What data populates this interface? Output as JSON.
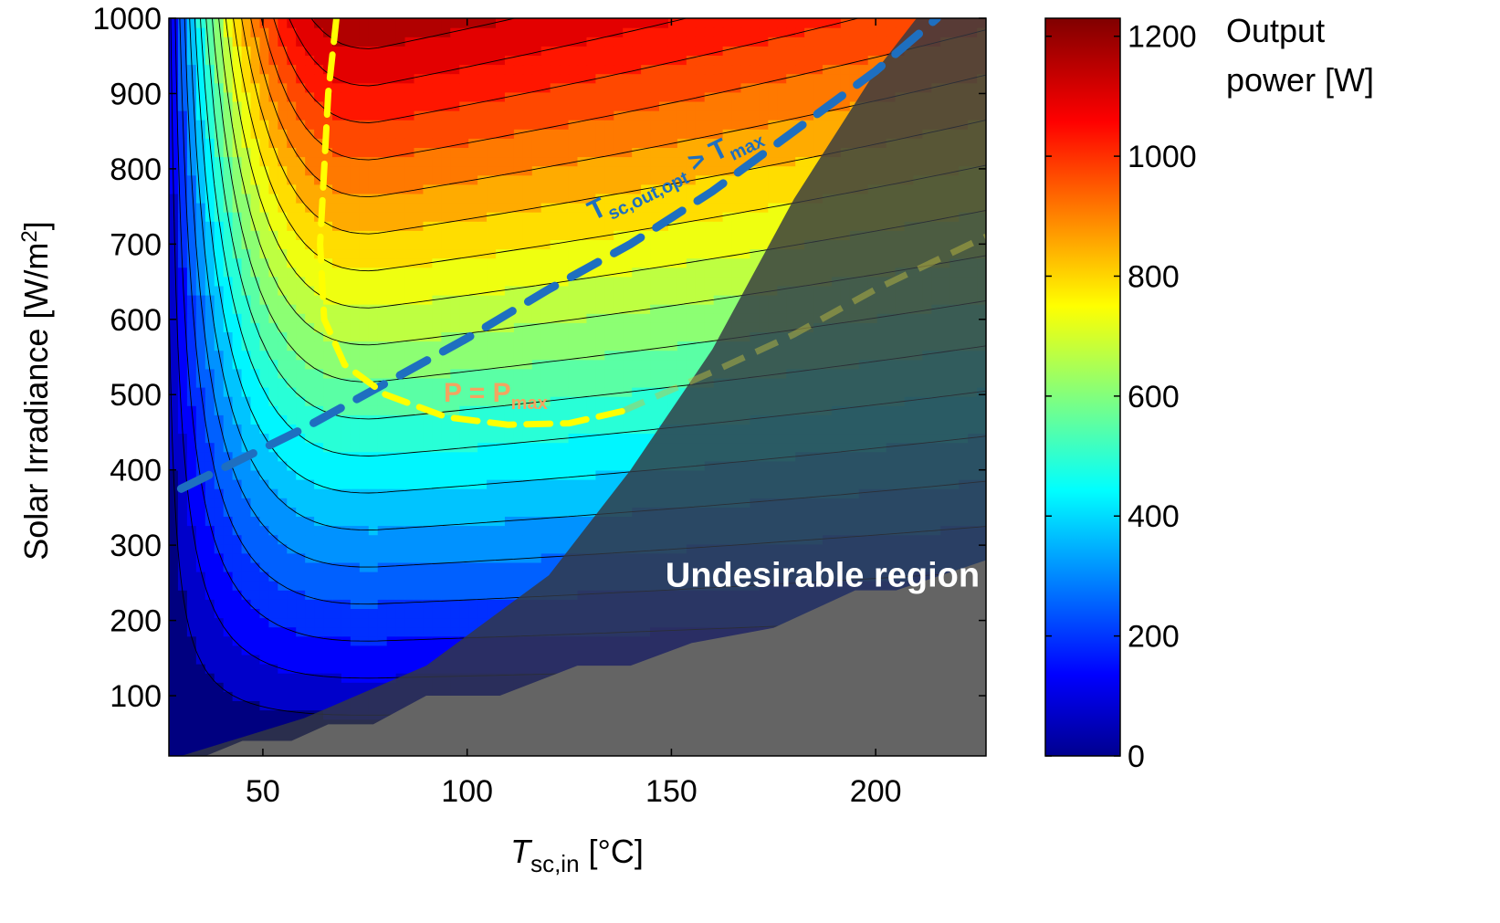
{
  "chart_data": {
    "type": "heatmap",
    "title": "",
    "xlabel": {
      "italic": "T",
      "sub": "sc,in",
      "unit": " [°C]"
    },
    "ylabel": {
      "text": "Solar Irradiance [W/m",
      "sup": "2",
      "close": "]"
    },
    "xlim": [
      27,
      227
    ],
    "ylim": [
      20,
      1000
    ],
    "xticks": [
      50,
      100,
      150,
      200
    ],
    "yticks": [
      100,
      200,
      300,
      400,
      500,
      600,
      700,
      800,
      900,
      1000
    ],
    "colorbar": {
      "label_line1": "Output",
      "label_line2": "power [W]",
      "range": [
        0,
        1230
      ],
      "ticks": [
        0,
        200,
        400,
        600,
        800,
        1000,
        1200
      ],
      "colormap": "jet"
    },
    "power_model": {
      "x_opt_at_high_irradiance": 77,
      "irradiance_min_for_optimum": 470
    },
    "contour_levels": [
      60,
      120,
      180,
      240,
      300,
      360,
      420,
      480,
      540,
      600,
      660,
      720,
      780,
      840,
      900,
      960,
      1020,
      1080,
      1140,
      1200
    ],
    "undesirable_boundary": [
      [
        30,
        20
      ],
      [
        60,
        70
      ],
      [
        90,
        140
      ],
      [
        120,
        260
      ],
      [
        140,
        400
      ],
      [
        160,
        560
      ],
      [
        180,
        760
      ],
      [
        200,
        930
      ],
      [
        210,
        1000
      ]
    ],
    "gray_region": [
      [
        36,
        20
      ],
      [
        45,
        40
      ],
      [
        57,
        40
      ],
      [
        66,
        62
      ],
      [
        77,
        62
      ],
      [
        90,
        100
      ],
      [
        108,
        100
      ],
      [
        127,
        140
      ],
      [
        140,
        140
      ],
      [
        155,
        170
      ],
      [
        175,
        190
      ],
      [
        195,
        240
      ],
      [
        205,
        240
      ],
      [
        227,
        280
      ]
    ],
    "series": [
      {
        "name": "P = P",
        "subscript": "max",
        "color": "#ffff00",
        "style": "dashed",
        "points": [
          [
            68,
            1000
          ],
          [
            66,
            900
          ],
          [
            65,
            800
          ],
          [
            64,
            700
          ],
          [
            65,
            600
          ],
          [
            70,
            540
          ],
          [
            80,
            500
          ],
          [
            95,
            470
          ],
          [
            110,
            460
          ],
          [
            125,
            462
          ],
          [
            138,
            478
          ]
        ]
      },
      {
        "name": "T",
        "subscript": "sc,out,opt",
        "suffix": " > T",
        "suffix_subscript": "max",
        "color": "#1e6fc0",
        "style": "dashed",
        "points": [
          [
            30,
            375
          ],
          [
            60,
            455
          ],
          [
            80,
            515
          ],
          [
            100,
            575
          ],
          [
            120,
            640
          ],
          [
            140,
            700
          ],
          [
            160,
            770
          ],
          [
            180,
            850
          ],
          [
            200,
            930
          ],
          [
            215,
            1000
          ]
        ]
      },
      {
        "name": "continuation",
        "color": "#c8c040",
        "style": "dashed-faded",
        "points": [
          [
            138,
            478
          ],
          [
            160,
            530
          ],
          [
            180,
            580
          ],
          [
            200,
            640
          ],
          [
            227,
            710
          ]
        ]
      }
    ],
    "annotations": [
      {
        "text": "Undesirable region",
        "at": [
          187,
          245
        ],
        "color": "#ffffff"
      }
    ]
  },
  "colors": {
    "shade_overlay": "#333842",
    "gray_fill": "#646464",
    "annot_pmax": "#f4a460",
    "annot_tmax": "#1e6fc0"
  }
}
